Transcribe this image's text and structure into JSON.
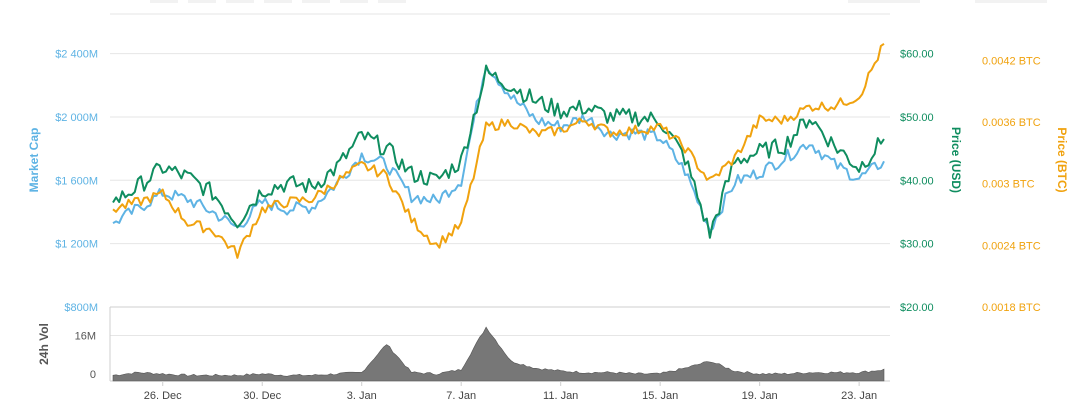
{
  "chart_data": {
    "type": "line",
    "title": "",
    "x": [
      "Dec 24",
      "Dec 25",
      "Dec 26",
      "Dec 27",
      "Dec 28",
      "Dec 29",
      "Dec 30",
      "Dec 31",
      "Jan 1",
      "Jan 2",
      "Jan 3",
      "Jan 4",
      "Jan 5",
      "Jan 6",
      "Jan 7",
      "Jan 8",
      "Jan 9",
      "Jan 10",
      "Jan 11",
      "Jan 12",
      "Jan 13",
      "Jan 14",
      "Jan 15",
      "Jan 16",
      "Jan 17",
      "Jan 18",
      "Jan 19",
      "Jan 20",
      "Jan 21",
      "Jan 22",
      "Jan 23",
      "Jan 24"
    ],
    "x_ticks": [
      "26. Dec",
      "30. Dec",
      "3. Jan",
      "7. Jan",
      "11. Jan",
      "15. Jan",
      "19. Jan",
      "23. Jan"
    ],
    "x_tick_index": [
      2,
      6,
      10,
      14,
      18,
      22,
      26,
      30
    ],
    "axes": {
      "market_cap": {
        "label": "Market Cap",
        "ticks": [
          "$800M",
          "$1 200M",
          "$1 600M",
          "$2 000M",
          "$2 400M"
        ],
        "tick_values": [
          800,
          1200,
          1600,
          2000,
          2400
        ],
        "range": [
          800,
          2650
        ],
        "color": "#5eb3e4"
      },
      "price_usd": {
        "label": "Price (USD)",
        "ticks": [
          "$20.00",
          "$30.00",
          "$40.00",
          "$50.00",
          "$60.00"
        ],
        "tick_values": [
          20,
          30,
          40,
          50,
          60
        ],
        "range": [
          20,
          66.25
        ],
        "color": "#0f8d5f"
      },
      "price_btc": {
        "label": "Price (BTC)",
        "ticks": [
          "0.0018 BTC",
          "0.0024 BTC",
          "0.003 BTC",
          "0.0036 BTC",
          "0.0042 BTC"
        ],
        "tick_values": [
          0.0018,
          0.0024,
          0.003,
          0.0036,
          0.0042
        ],
        "range": [
          0.0018,
          0.00465
        ],
        "color": "#f0a20e"
      },
      "volume": {
        "label": "24h Vol",
        "ticks": [
          "0",
          "16M"
        ],
        "tick_values": [
          0,
          16
        ],
        "range": [
          0,
          25
        ],
        "color": "#666666"
      }
    },
    "series": [
      {
        "axis": "market_cap",
        "color": "#5eb3e4",
        "values": [
          1330,
          1420,
          1520,
          1480,
          1400,
          1300,
          1460,
          1420,
          1430,
          1580,
          1760,
          1700,
          1500,
          1470,
          1600,
          2340,
          2130,
          1980,
          1940,
          2000,
          1890,
          1900,
          1870,
          1660,
          1290,
          1590,
          1650,
          1740,
          1840,
          1700,
          1610,
          1720
        ]
      },
      {
        "axis": "price_usd",
        "color": "#0f8d5f",
        "values": [
          36.5,
          39.0,
          42.0,
          40.5,
          38.0,
          33.5,
          38.5,
          39.5,
          39.0,
          42.0,
          47.0,
          45.0,
          41.0,
          40.0,
          43.0,
          57.0,
          55.0,
          52.5,
          51.0,
          51.5,
          50.0,
          50.0,
          49.5,
          43.5,
          31.5,
          43.0,
          44.5,
          45.5,
          50.0,
          45.5,
          42.0,
          46.5
        ]
      },
      {
        "axis": "price_btc",
        "color": "#f0a20e",
        "values": [
          0.00275,
          0.00282,
          0.0029,
          0.00262,
          0.00255,
          0.00232,
          0.00275,
          0.00282,
          0.00285,
          0.00302,
          0.00318,
          0.00308,
          0.00265,
          0.0024,
          0.0026,
          0.00355,
          0.0036,
          0.00348,
          0.00352,
          0.00362,
          0.0035,
          0.00352,
          0.00355,
          0.00335,
          0.00302,
          0.00325,
          0.00362,
          0.00362,
          0.00375,
          0.00376,
          0.00385,
          0.00436
        ]
      }
    ],
    "volume": [
      2,
      3,
      2.5,
      2,
      2,
      2,
      2.5,
      2,
      2,
      2.5,
      3,
      13,
      3,
      2.5,
      4,
      19,
      7,
      4.5,
      3.5,
      3,
      3,
      2.5,
      2.5,
      4.5,
      7,
      3.5,
      2.5,
      2.5,
      3,
      3,
      3,
      4
    ],
    "grid": true,
    "legend": "none"
  }
}
